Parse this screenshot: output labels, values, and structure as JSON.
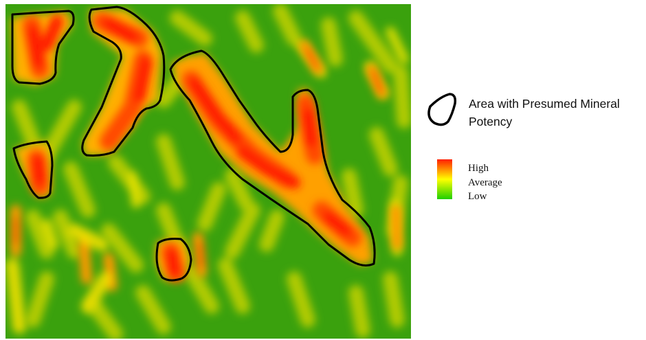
{
  "legend": {
    "outline_label": "Area with Presumed Mineral Potency",
    "outline_icon": "closed-outline-icon",
    "ramp": {
      "high_label": "High",
      "average_label": "Average",
      "low_label": "Low",
      "colors": {
        "high": "#ff1e00",
        "average": "#ffff00",
        "low": "#1fcf00"
      }
    }
  },
  "map": {
    "background_color": "#3aa10d",
    "outline_color": "#000000",
    "potency_zones": 5
  }
}
